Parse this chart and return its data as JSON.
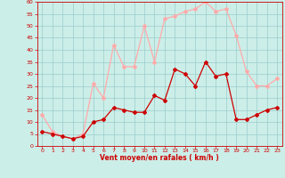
{
  "x": [
    0,
    1,
    2,
    3,
    4,
    5,
    6,
    7,
    8,
    9,
    10,
    11,
    12,
    13,
    14,
    15,
    16,
    17,
    18,
    19,
    20,
    21,
    22,
    23
  ],
  "wind_avg": [
    6,
    5,
    4,
    3,
    4,
    10,
    11,
    16,
    15,
    14,
    14,
    21,
    19,
    32,
    30,
    25,
    35,
    29,
    30,
    11,
    11,
    13,
    15,
    16
  ],
  "wind_gust": [
    13,
    6,
    4,
    3,
    5,
    26,
    20,
    42,
    33,
    33,
    50,
    35,
    53,
    54,
    56,
    57,
    60,
    56,
    57,
    46,
    31,
    25,
    25,
    28
  ],
  "line_avg_color": "#cc0000",
  "line_gust_color": "#ffaaaa",
  "bg_color": "#cceee8",
  "grid_color": "#99cccc",
  "text_color": "#cc0000",
  "xlabel": "Vent moyen/en rafales ( km/h )",
  "ylim": [
    0,
    60
  ],
  "yticks": [
    0,
    5,
    10,
    15,
    20,
    25,
    30,
    35,
    40,
    45,
    50,
    55,
    60
  ],
  "xticks": [
    0,
    1,
    2,
    3,
    4,
    5,
    6,
    7,
    8,
    9,
    10,
    11,
    12,
    13,
    14,
    15,
    16,
    17,
    18,
    19,
    20,
    21,
    22,
    23
  ]
}
